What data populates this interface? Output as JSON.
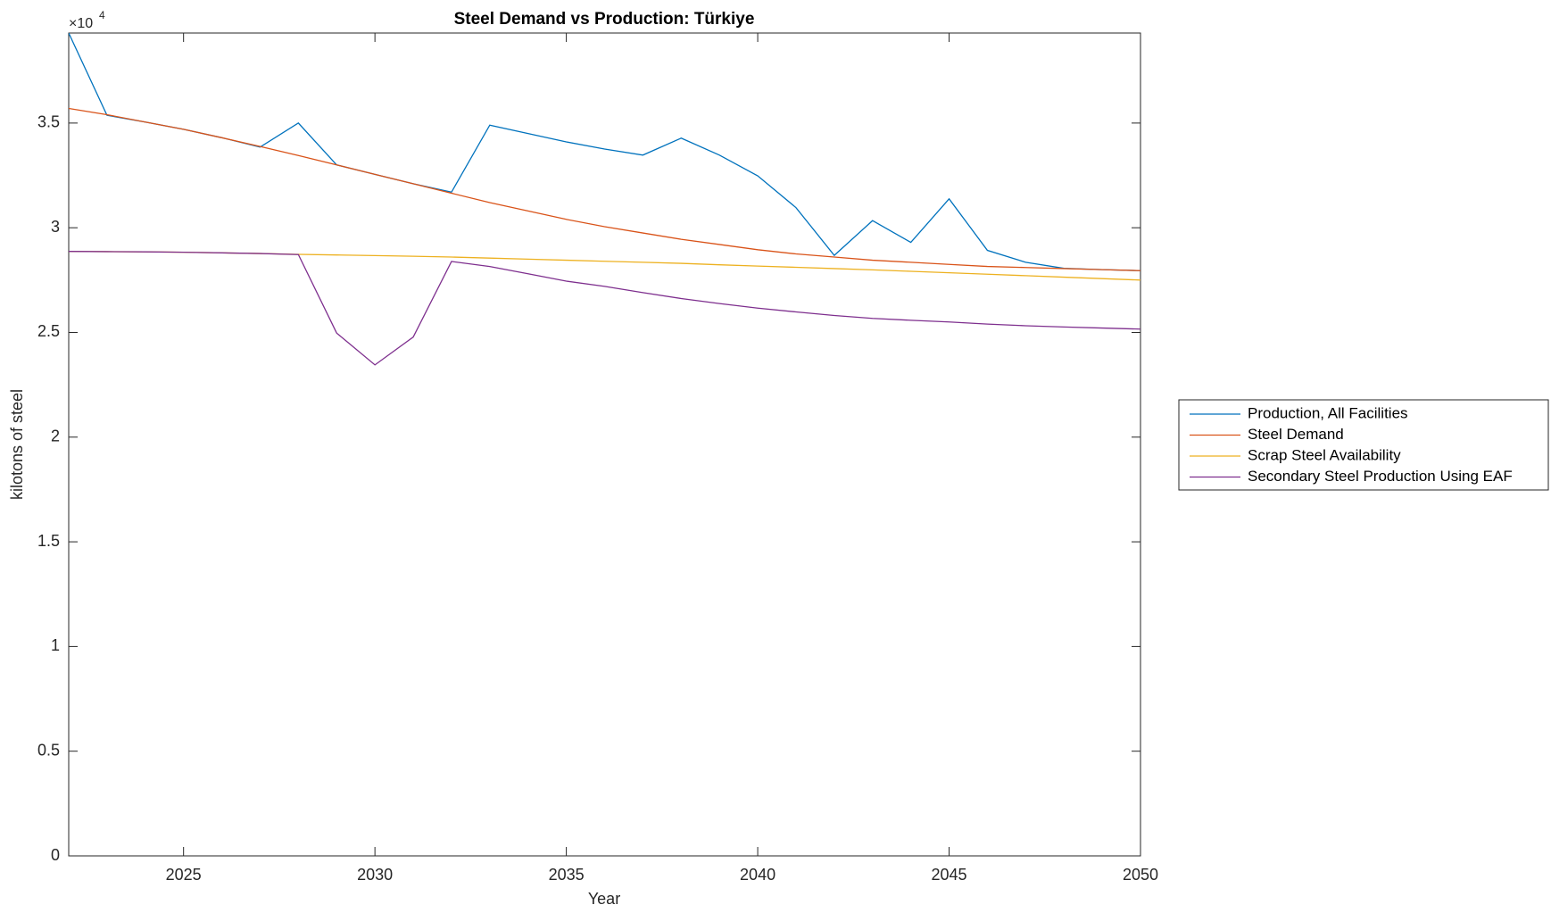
{
  "chart_data": {
    "type": "line",
    "title": "Steel Demand vs Production: Türkiye",
    "x_label": "Year",
    "y_label": "kilotons of steel",
    "y_multiplier": {
      "base": "×10",
      "exponent": "4"
    },
    "x": [
      2022,
      2023,
      2024,
      2025,
      2026,
      2027,
      2028,
      2029,
      2030,
      2031,
      2032,
      2033,
      2034,
      2035,
      2036,
      2037,
      2038,
      2039,
      2040,
      2041,
      2042,
      2043,
      2044,
      2045,
      2046,
      2047,
      2048,
      2049,
      2050
    ],
    "series": [
      {
        "name": "Production, All Facilities",
        "color": "#0072BD",
        "values": [
          39300,
          35370,
          35050,
          34700,
          34300,
          33850,
          35000,
          33000,
          32550,
          32100,
          31700,
          34900,
          34500,
          34100,
          33760,
          33470,
          34280,
          33470,
          32480,
          30960,
          28680,
          30340,
          29300,
          31380,
          28920,
          28350,
          28060,
          28000,
          27950
        ]
      },
      {
        "name": "Steel Demand",
        "color": "#D95319",
        "values": [
          35700,
          35400,
          35050,
          34700,
          34300,
          33880,
          33450,
          33000,
          32550,
          32100,
          31650,
          31200,
          30800,
          30400,
          30050,
          29750,
          29450,
          29200,
          28950,
          28750,
          28600,
          28450,
          28350,
          28250,
          28150,
          28100,
          28050,
          28000,
          27950
        ]
      },
      {
        "name": "Scrap Steel Availability",
        "color": "#EDB120",
        "values": [
          28870,
          28860,
          28850,
          28830,
          28800,
          28770,
          28730,
          28700,
          28670,
          28640,
          28600,
          28550,
          28500,
          28450,
          28400,
          28350,
          28300,
          28230,
          28170,
          28110,
          28050,
          27990,
          27920,
          27850,
          27780,
          27710,
          27640,
          27570,
          27500
        ]
      },
      {
        "name": "Secondary Steel Production Using EAF",
        "color": "#7E2F8E",
        "values": [
          28870,
          28860,
          28850,
          28830,
          28800,
          28770,
          28720,
          24970,
          23450,
          24780,
          28390,
          28150,
          27800,
          27450,
          27200,
          26900,
          26620,
          26380,
          26160,
          25980,
          25810,
          25670,
          25580,
          25500,
          25400,
          25320,
          25260,
          25210,
          25160
        ]
      }
    ],
    "xlim": [
      2022,
      2050
    ],
    "xticks": [
      2025,
      2030,
      2035,
      2040,
      2045,
      2050
    ],
    "ylim": [
      0,
      39300
    ],
    "yticks": [
      0,
      {
        "value": 5000,
        "label": "0.5"
      },
      {
        "value": 10000,
        "label": "1"
      },
      {
        "value": 15000,
        "label": "1.5"
      },
      {
        "value": 20000,
        "label": "2"
      },
      {
        "value": 25000,
        "label": "2.5"
      },
      {
        "value": 30000,
        "label": "3"
      },
      {
        "value": 35000,
        "label": "3.5"
      }
    ],
    "grid": false,
    "legend": "outside-right"
  }
}
